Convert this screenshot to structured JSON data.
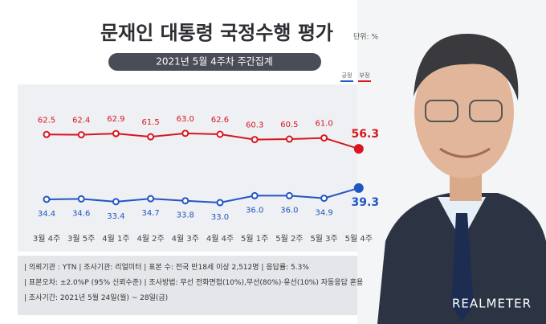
{
  "chart_data": {
    "type": "line",
    "title": "문재인 대통령 국정수행 평가",
    "unit": "단위: %",
    "subtitle": "2021년 5월 4주차 주간집계",
    "categories": [
      "3월 4주",
      "3월 5주",
      "4월 1주",
      "4월 2주",
      "4월 3주",
      "4월 4주",
      "5월 1주",
      "5월 2주",
      "5월 3주",
      "5월 4주"
    ],
    "series": [
      {
        "name": "긍정",
        "color": "#2255c4",
        "values": [
          34.4,
          34.6,
          33.4,
          34.7,
          33.8,
          33.0,
          36.0,
          36.0,
          34.9,
          39.3
        ],
        "value_labels": [
          "34.4",
          "34.6",
          "33.4",
          "34.7",
          "33.8",
          "33.0",
          "36.0",
          "36.0",
          "34.9",
          "39.3"
        ]
      },
      {
        "name": "부정",
        "color": "#d8161f",
        "values": [
          62.5,
          62.4,
          62.9,
          61.5,
          63.0,
          62.6,
          60.3,
          60.5,
          61.0,
          56.3
        ],
        "value_labels": [
          "62.5",
          "62.4",
          "62.9",
          "61.5",
          "63.0",
          "62.6",
          "60.3",
          "60.5",
          "61.0",
          "56.3"
        ]
      }
    ],
    "ylim": [
      25,
      72
    ],
    "footer": [
      "의뢰기관 : YTN",
      "조사기관: 리얼미터",
      "표본 수: 전국 만18세 이상 2,512명",
      "응답률: 5.3%",
      "표본오차: ±2.0%P (95% 신뢰수준)",
      "조사방법: 무선 전화면접(10%),무선(80%)·유선(10%) 자동응답 혼용",
      "조사기간: 2021년 5월 24일(월) ~ 28일(금)"
    ],
    "brand": "REALMETER"
  }
}
